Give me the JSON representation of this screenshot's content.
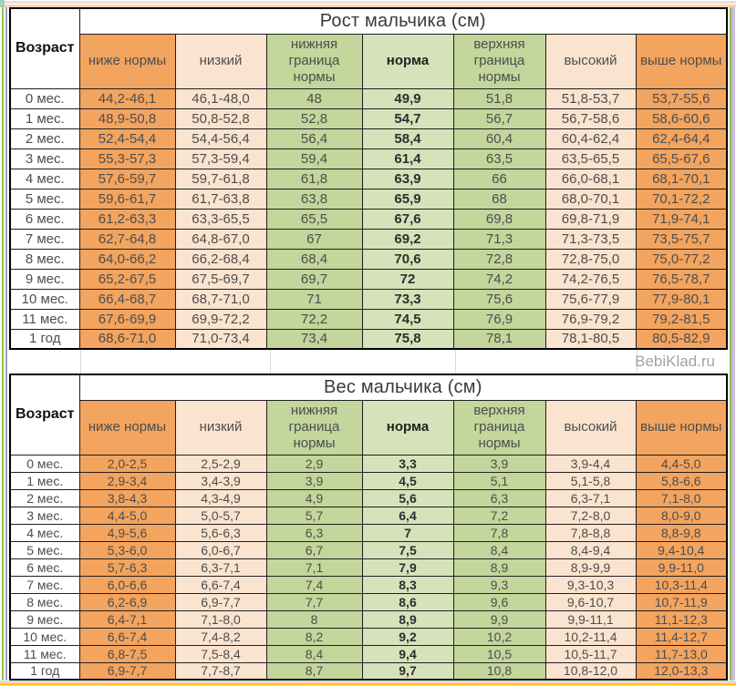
{
  "page": {
    "watermark": "BebiKlad.ru"
  },
  "colors": {
    "below_norm_orange": "#f3a45e",
    "low_high_peach": "#fbe4cf",
    "boundary_green": "#c3d69b",
    "norm_light_green": "#d6e3ba",
    "border": "#000000",
    "cell_text": "#4d4d4d",
    "watermark_gray": "#a3a3a3",
    "bottom_accent_yellow": "#ffc112"
  },
  "tables": [
    {
      "title": "Рост мальчика (см)",
      "age_header": "Возраст",
      "columns": [
        "ниже нормы",
        "низкий",
        "нижняя граница нормы",
        "норма",
        "верхняя граница нормы",
        "высокий",
        "выше нормы"
      ],
      "rows": [
        {
          "age": "0 мес.",
          "values": [
            "44,2-46,1",
            "46,1-48,0",
            "48",
            "49,9",
            "51,8",
            "51,8-53,7",
            "53,7-55,6"
          ]
        },
        {
          "age": "1 мес.",
          "values": [
            "48,9-50,8",
            "50,8-52,8",
            "52,8",
            "54,7",
            "56,7",
            "56,7-58,6",
            "58,6-60,6"
          ]
        },
        {
          "age": "2 мес.",
          "values": [
            "52,4-54,4",
            "54,4-56,4",
            "56,4",
            "58,4",
            "60,4",
            "60,4-62,4",
            "62,4-64,4"
          ]
        },
        {
          "age": "3 мес.",
          "values": [
            "55,3-57,3",
            "57,3-59,4",
            "59,4",
            "61,4",
            "63,5",
            "63,5-65,5",
            "65,5-67,6"
          ]
        },
        {
          "age": "4 мес.",
          "values": [
            "57,6-59,7",
            "59,7-61,8",
            "61,8",
            "63,9",
            "66",
            "66,0-68,1",
            "68,1-70,1"
          ]
        },
        {
          "age": "5 мес.",
          "values": [
            "59,6-61,7",
            "61,7-63,8",
            "63,8",
            "65,9",
            "68",
            "68,0-70,1",
            "70,1-72,2"
          ]
        },
        {
          "age": "6 мес.",
          "values": [
            "61,2-63,3",
            "63,3-65,5",
            "65,5",
            "67,6",
            "69,8",
            "69,8-71,9",
            "71,9-74,1"
          ]
        },
        {
          "age": "7 мес.",
          "values": [
            "62,7-64,8",
            "64,8-67,0",
            "67",
            "69,2",
            "71,3",
            "71,3-73,5",
            "73,5-75,7"
          ]
        },
        {
          "age": "8 мес.",
          "values": [
            "64,0-66,2",
            "66,2-68,4",
            "68,4",
            "70,6",
            "72,8",
            "72,8-75,0",
            "75,0-77,2"
          ]
        },
        {
          "age": "9 мес.",
          "values": [
            "65,2-67,5",
            "67,5-69,7",
            "69,7",
            "72",
            "74,2",
            "74,2-76,5",
            "76,5-78,7"
          ]
        },
        {
          "age": "10 мес.",
          "values": [
            "66,4-68,7",
            "68,7-71,0",
            "71",
            "73,3",
            "75,6",
            "75,6-77,9",
            "77,9-80,1"
          ]
        },
        {
          "age": "11 мес.",
          "values": [
            "67,6-69,9",
            "69,9-72,2",
            "72,2",
            "74,5",
            "76,9",
            "76,9-79,2",
            "79,2-81,5"
          ]
        },
        {
          "age": "1 год",
          "values": [
            "68,6-71,0",
            "71,0-73,4",
            "73,4",
            "75,8",
            "78,1",
            "78,1-80,5",
            "80,5-82,9"
          ]
        }
      ]
    },
    {
      "title": "Вес мальчика (см)",
      "age_header": "Возраст",
      "columns": [
        "ниже нормы",
        "низкий",
        "нижняя граница нормы",
        "норма",
        "верхняя граница нормы",
        "высокий",
        "выше нормы"
      ],
      "rows": [
        {
          "age": "0 мес.",
          "values": [
            "2,0-2,5",
            "2,5-2,9",
            "2,9",
            "3,3",
            "3,9",
            "3,9-4,4",
            "4,4-5,0"
          ]
        },
        {
          "age": "1 мес.",
          "values": [
            "2,9-3,4",
            "3,4-3,9",
            "3,9",
            "4,5",
            "5,1",
            "5,1-5,8",
            "5,8-6,6"
          ]
        },
        {
          "age": "2 мес.",
          "values": [
            "3,8-4,3",
            "4,3-4,9",
            "4,9",
            "5,6",
            "6,3",
            "6,3-7,1",
            "7,1-8,0"
          ]
        },
        {
          "age": "3 мес.",
          "values": [
            "4,4-5,0",
            "5,0-5,7",
            "5,7",
            "6,4",
            "7,2",
            "7,2-8,0",
            "8,0-9,0"
          ]
        },
        {
          "age": "4 мес.",
          "values": [
            "4,9-5,6",
            "5,6-6,3",
            "6,3",
            "7",
            "7,8",
            "7,8-8,8",
            "8,8-9,8"
          ]
        },
        {
          "age": "5 мес.",
          "values": [
            "5,3-6,0",
            "6,0-6,7",
            "6,7",
            "7,5",
            "8,4",
            "8,4-9,4",
            "9,4-10,4"
          ]
        },
        {
          "age": "6 мес.",
          "values": [
            "5,7-6,3",
            "6,3-7,1",
            "7,1",
            "7,9",
            "8,9",
            "8,9-9,9",
            "9,9-11,0"
          ]
        },
        {
          "age": "7 мес.",
          "values": [
            "6,0-6,6",
            "6,6-7,4",
            "7,4",
            "8,3",
            "9,3",
            "9,3-10,3",
            "10,3-11,4"
          ]
        },
        {
          "age": "8 мес.",
          "values": [
            "6,2-6,9",
            "6,9-7,7",
            "7,7",
            "8,6",
            "9,6",
            "9,6-10,7",
            "10,7-11,9"
          ]
        },
        {
          "age": "9 мес.",
          "values": [
            "6,4-7,1",
            "7,1-8,0",
            "8",
            "8,9",
            "9,9",
            "9,9-11,1",
            "11,1-12,3"
          ]
        },
        {
          "age": "10 мес.",
          "values": [
            "6,6-7,4",
            "7,4-8,2",
            "8,2",
            "9,2",
            "10,2",
            "10,2-11,4",
            "11,4-12,7"
          ]
        },
        {
          "age": "11 мес.",
          "values": [
            "6,8-7,5",
            "7,5-8,4",
            "8,4",
            "9,4",
            "10,5",
            "10,5-11,7",
            "11,7-13,0"
          ]
        },
        {
          "age": "1 год",
          "values": [
            "6,9-7,7",
            "7,7-8,7",
            "8,7",
            "9,7",
            "10,8",
            "10,8-12,0",
            "12,0-13,3"
          ]
        }
      ]
    }
  ]
}
